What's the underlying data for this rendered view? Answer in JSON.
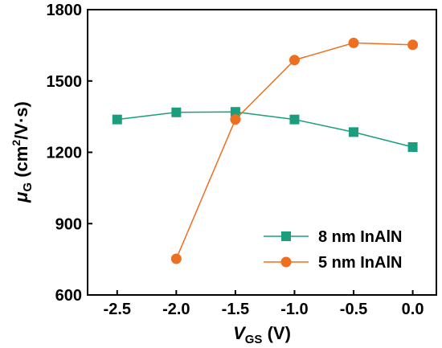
{
  "chart_data": {
    "type": "line",
    "x": [
      -2.5,
      -2.0,
      -1.5,
      -1.0,
      -0.5,
      0.0
    ],
    "xticks": [
      "-2.5",
      "-2.0",
      "-1.5",
      "-1.0",
      "-0.5",
      "0.0"
    ],
    "yticks": [
      "600",
      "900",
      "1200",
      "1500",
      "1800"
    ],
    "xlim": [
      -2.75,
      0.2
    ],
    "ylim": [
      600,
      1800
    ],
    "xlabel": {
      "symbol": "V",
      "sub": "GS",
      "unit": " (V)"
    },
    "ylabel": {
      "symbol": "μ",
      "sub": "G",
      "unit_open": " (cm",
      "sup": "2",
      "unit_close": "/V·s)"
    },
    "series": [
      {
        "name": "8 nm InAlN",
        "marker": "square",
        "color": "#1a9e7e",
        "x": [
          -2.5,
          -2.0,
          -1.5,
          -1.0,
          -0.5,
          0.0
        ],
        "y": [
          1338,
          1368,
          1370,
          1338,
          1285,
          1222
        ]
      },
      {
        "name": "5 nm InAlN",
        "marker": "circle",
        "color": "#ee6f1f",
        "x": [
          -2.0,
          -1.5,
          -1.0,
          -0.5,
          0.0
        ],
        "y": [
          752,
          1338,
          1588,
          1660,
          1652
        ]
      }
    ],
    "legend_position": "bottom-right",
    "grid": false
  }
}
